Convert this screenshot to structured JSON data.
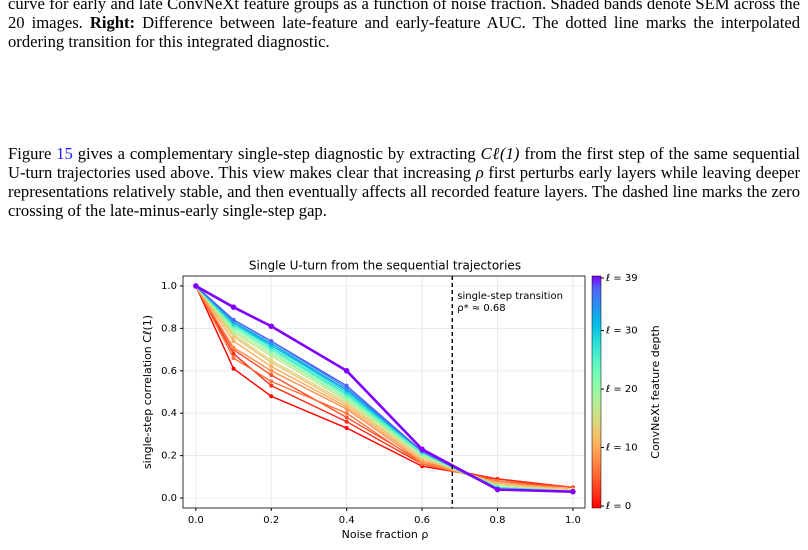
{
  "caption": [
    {
      "text": "curve for early and late ConvNeXt feature groups as a function of noise fraction. Shaded bands denote SEM across the 20 images. "
    },
    {
      "text": "Right:",
      "style": "bold"
    },
    {
      "text": " Difference between late-feature and early-feature AUC. The dotted line marks the interpolated ordering transition for this integrated diagnostic."
    }
  ],
  "paragraph": [
    {
      "text": "Figure "
    },
    {
      "text": "15",
      "style": "link"
    },
    {
      "text": " gives a complementary single-step diagnostic by extracting "
    },
    {
      "text": "Cℓ(1)",
      "style": "math"
    },
    {
      "text": " from the first step of the same sequential U-turn trajectories used above. This view makes clear that increasing "
    },
    {
      "text": "ρ",
      "style": "math"
    },
    {
      "text": " first perturbs early layers while leaving deeper representations relatively stable, and then eventually affects all recorded feature layers. The dashed line marks the zero crossing of the late-minus-early single-step gap."
    }
  ],
  "chart_data": {
    "type": "line",
    "title": "Single U-turn from the sequential trajectories",
    "x_label": "Noise fraction ρ",
    "y_label": "single-step correlation Cℓ(1)",
    "x": [
      0,
      0.1,
      0.2,
      0.4,
      0.6,
      0.8,
      1.0
    ],
    "xlim": [
      -0.034,
      1.032
    ],
    "ylim": [
      -0.047,
      1.047
    ],
    "xticks": [
      {
        "value": 0,
        "label": "0.0"
      },
      {
        "value": 0.2,
        "label": "0.2"
      },
      {
        "value": 0.4,
        "label": "0.4"
      },
      {
        "value": 0.6,
        "label": "0.6"
      },
      {
        "value": 0.8,
        "label": "0.8"
      },
      {
        "value": 1.0,
        "label": "1.0"
      }
    ],
    "yticks": [
      {
        "value": 0,
        "label": "0.0"
      },
      {
        "value": 0.2,
        "label": "0.2"
      },
      {
        "value": 0.4,
        "label": "0.4"
      },
      {
        "value": 0.6,
        "label": "0.6"
      },
      {
        "value": 0.8,
        "label": "0.8"
      },
      {
        "value": 1.0,
        "label": "1.0"
      }
    ],
    "grid": true,
    "transition": {
      "x": 0.68,
      "label": "single-step transition",
      "value_label": "ρ* ≈ 0.68"
    },
    "colorbar": {
      "label": "ConvNeXt feature depth",
      "lim": [
        0,
        39
      ],
      "ticks": [
        {
          "value": 39,
          "label": "ℓ = 39"
        },
        {
          "value": 30,
          "label": "ℓ = 30"
        },
        {
          "value": 20,
          "label": "ℓ = 20"
        },
        {
          "value": 10,
          "label": "ℓ = 10"
        },
        {
          "value": 0,
          "label": "ℓ = 0"
        }
      ]
    },
    "series": [
      {
        "color": "#ff0000",
        "values": [
          1,
          0.61,
          0.48,
          0.33,
          0.15,
          0.09,
          0.05
        ]
      },
      {
        "color": "#ff2a15",
        "values": [
          1,
          0.68,
          0.53,
          0.36,
          0.16,
          0.09,
          0.05
        ]
      },
      {
        "color": "#ff4f27",
        "values": [
          1,
          0.7,
          0.58,
          0.38,
          0.17,
          0.08,
          0.05
        ]
      },
      {
        "color": "#ff7039",
        "values": [
          1,
          0.66,
          0.55,
          0.4,
          0.16,
          0.08,
          0.04
        ]
      },
      {
        "color": "#ff8f4b",
        "values": [
          1,
          0.71,
          0.6,
          0.42,
          0.17,
          0.07,
          0.04
        ]
      },
      {
        "color": "#ffaa5c",
        "values": [
          1,
          0.74,
          0.62,
          0.43,
          0.18,
          0.07,
          0.04
        ]
      },
      {
        "color": "#f0c26d",
        "values": [
          1,
          0.76,
          0.64,
          0.44,
          0.19,
          0.06,
          0.04
        ]
      },
      {
        "color": "#dcd67e",
        "values": [
          1,
          0.77,
          0.65,
          0.45,
          0.19,
          0.06,
          0.04
        ]
      },
      {
        "color": "#c4e68e",
        "values": [
          1,
          0.78,
          0.67,
          0.46,
          0.2,
          0.06,
          0.03
        ]
      },
      {
        "color": "#aaf29d",
        "values": [
          1,
          0.79,
          0.68,
          0.47,
          0.2,
          0.05,
          0.03
        ]
      },
      {
        "color": "#90fbaa",
        "values": [
          1,
          0.8,
          0.69,
          0.47,
          0.21,
          0.05,
          0.03
        ]
      },
      {
        "color": "#74fcb8",
        "values": [
          1,
          0.81,
          0.7,
          0.48,
          0.21,
          0.05,
          0.03
        ]
      },
      {
        "color": "#58f5c5",
        "values": [
          1,
          0.81,
          0.7,
          0.49,
          0.21,
          0.05,
          0.03
        ]
      },
      {
        "color": "#3ce8d1",
        "values": [
          1,
          0.82,
          0.71,
          0.49,
          0.22,
          0.05,
          0.03
        ]
      },
      {
        "color": "#1fd5db",
        "values": [
          1,
          0.82,
          0.72,
          0.5,
          0.22,
          0.04,
          0.03
        ]
      },
      {
        "color": "#04bee4",
        "values": [
          1,
          0.83,
          0.72,
          0.51,
          0.22,
          0.04,
          0.03
        ]
      },
      {
        "color": "#1aa2ec",
        "values": [
          1,
          0.83,
          0.73,
          0.51,
          0.22,
          0.04,
          0.03
        ]
      },
      {
        "color": "#3684f2",
        "values": [
          1,
          0.84,
          0.74,
          0.52,
          0.22,
          0.04,
          0.03
        ]
      },
      {
        "color": "#5064f7",
        "values": [
          1,
          0.84,
          0.74,
          0.53,
          0.22,
          0.04,
          0.03
        ]
      },
      {
        "color": "#8000ff",
        "line_width": 2.6,
        "values": [
          1,
          0.9,
          0.81,
          0.6,
          0.23,
          0.04,
          0.03
        ]
      }
    ]
  }
}
